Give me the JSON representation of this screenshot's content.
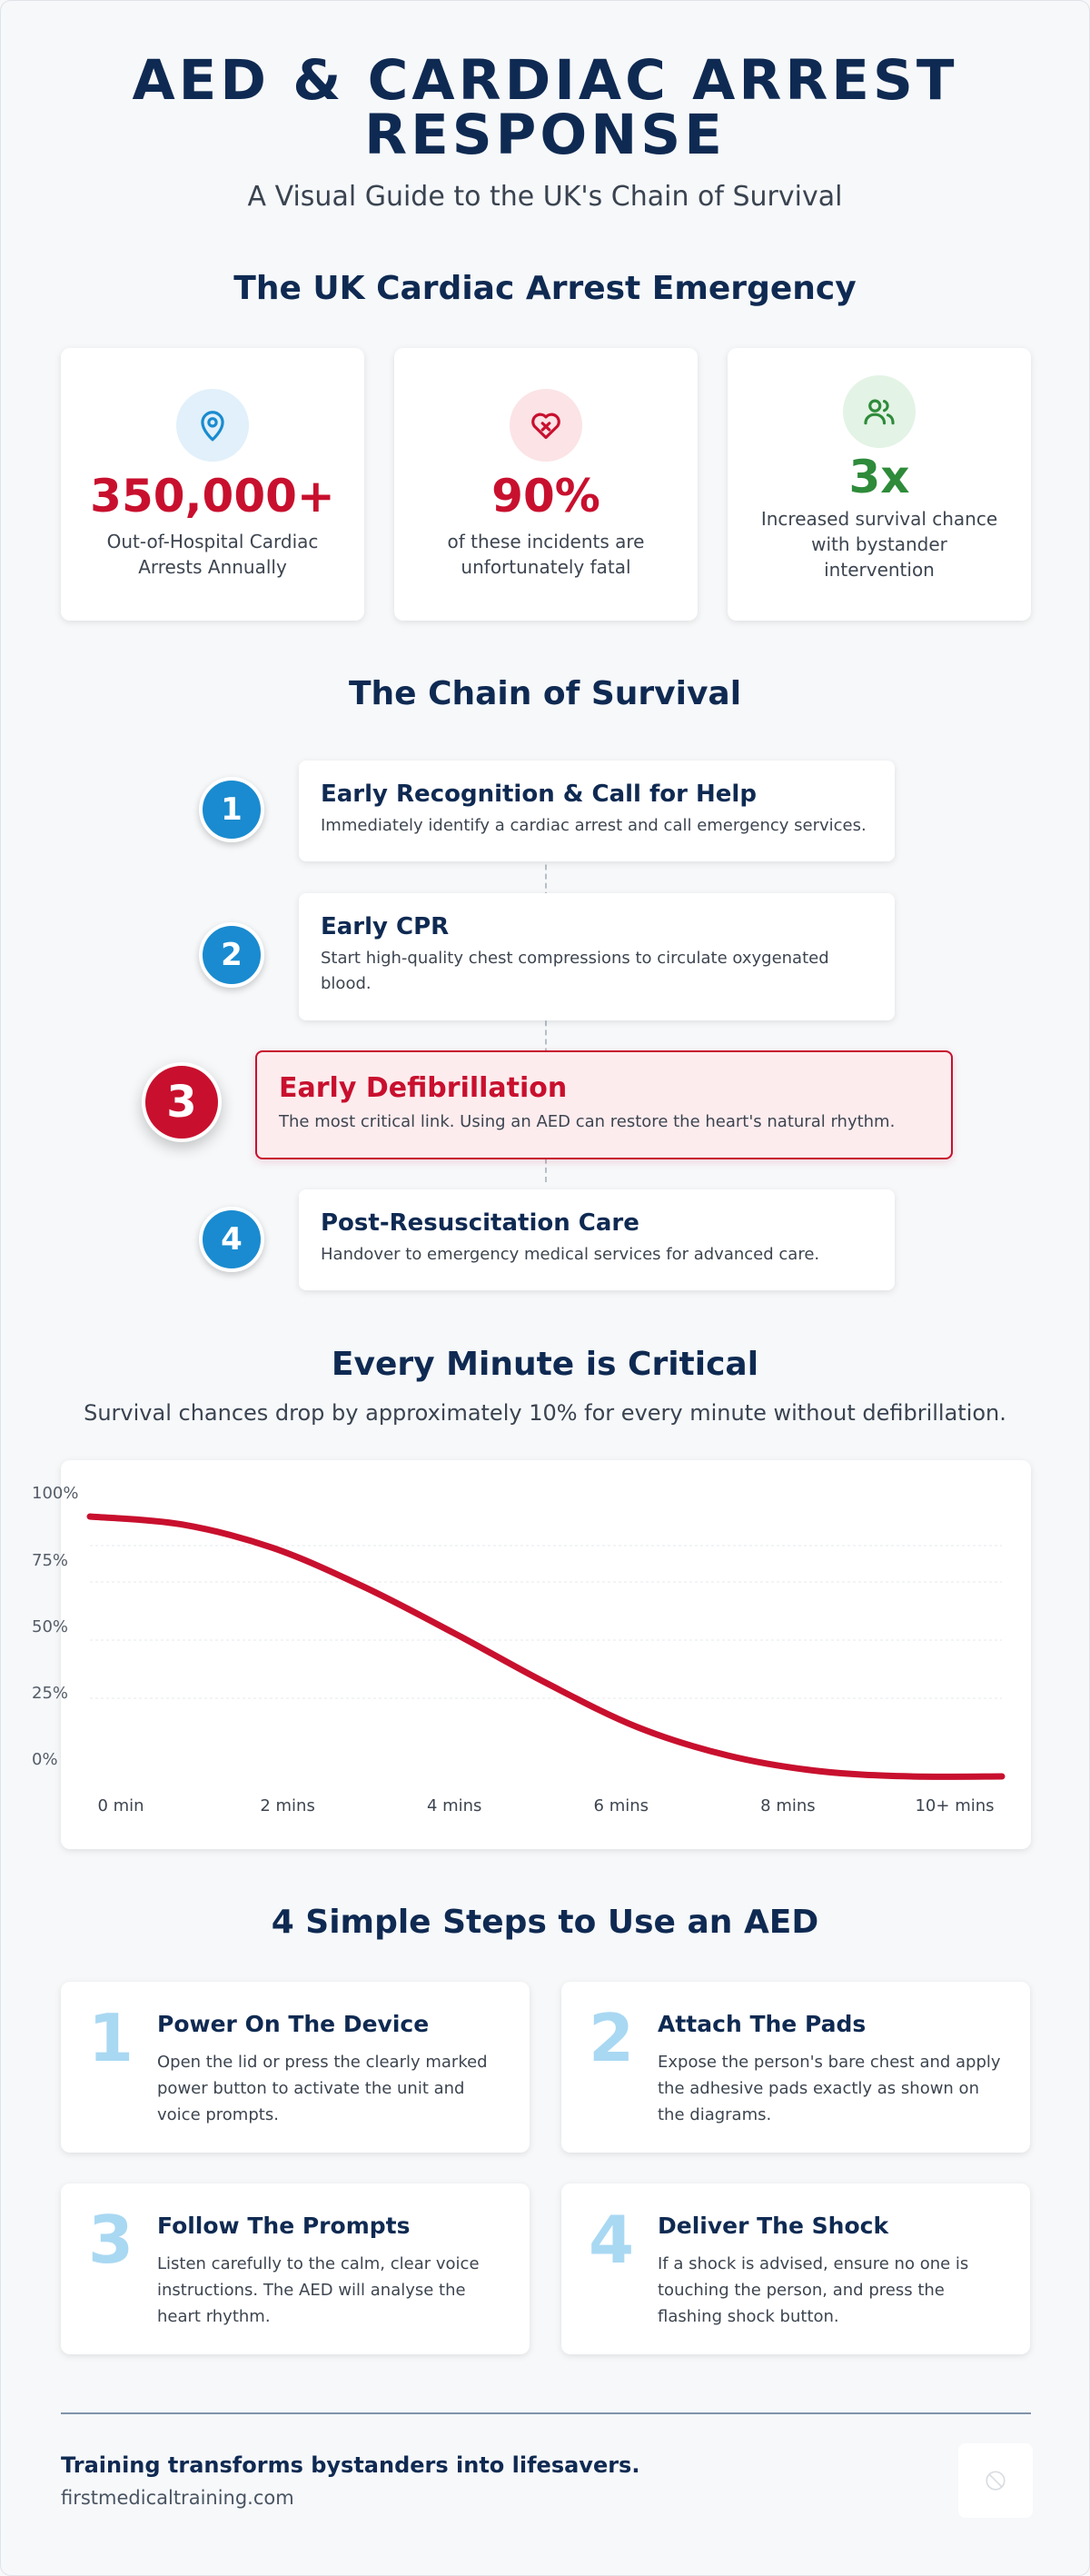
{
  "header": {
    "title_line1": "AED & CARDIAC ARREST",
    "title_line2": "RESPONSE",
    "subtitle": "A Visual Guide to the UK's Chain of Survival"
  },
  "emergency": {
    "heading": "The UK Cardiac Arrest Emergency",
    "stats": [
      {
        "icon": "map-pin-icon",
        "value": "350,000+",
        "label": "Out-of-Hospital Cardiac Arrests Annually",
        "color": "#c8102e",
        "icon_bg": "#e1f0fa",
        "icon_color": "#1a8bd0"
      },
      {
        "icon": "broken-heart-icon",
        "value": "90%",
        "label": "of these incidents are unfortunately fatal",
        "color": "#c8102e",
        "icon_bg": "#fbe3e6",
        "icon_color": "#c8102e"
      },
      {
        "icon": "users-icon",
        "value": "3x",
        "label": "Increased survival chance with bystander intervention",
        "color": "#2e8b3a",
        "icon_bg": "#e3f3e5",
        "icon_color": "#2e8b3a"
      }
    ]
  },
  "chain": {
    "heading": "The Chain of Survival",
    "steps": [
      {
        "num": "1",
        "title": "Early Recognition & Call for Help",
        "desc": "Immediately identify a cardiac arrest and call emergency services."
      },
      {
        "num": "2",
        "title": "Early CPR",
        "desc": "Start high-quality chest compressions to circulate oxygenated blood."
      },
      {
        "num": "3",
        "title": "Early Defibrillation",
        "desc": "The most critical link. Using an AED can restore the heart's natural rhythm."
      },
      {
        "num": "4",
        "title": "Post-Resuscitation Care",
        "desc": "Handover to emergency medical services for advanced care."
      }
    ]
  },
  "critical": {
    "heading": "Every Minute is Critical",
    "subtitle": "Survival chances drop by approximately 10% for every minute without defibrillation."
  },
  "chart_data": {
    "type": "line",
    "title": "",
    "xlabel": "",
    "ylabel": "",
    "y_ticks": [
      "100%",
      "75%",
      "50%",
      "25%",
      "0%"
    ],
    "x_tick_labels": [
      "0 min",
      "2 mins",
      "4 mins",
      "6 mins",
      "8 mins",
      "10+ mins"
    ],
    "ylim": [
      0,
      100
    ],
    "grid": true,
    "series": [
      {
        "color": "#c8102e",
        "x": [
          0,
          1,
          2,
          3,
          4,
          5,
          6,
          7,
          8,
          9,
          10
        ],
        "y": [
          100,
          97,
          88,
          73,
          55,
          36,
          19,
          8,
          2,
          0,
          0
        ]
      }
    ]
  },
  "aed": {
    "heading": "4 Simple Steps to Use an AED",
    "steps": [
      {
        "num": "1",
        "title": "Power On The Device",
        "desc": "Open the lid or press the clearly marked power button to activate the unit and voice prompts."
      },
      {
        "num": "2",
        "title": "Attach The Pads",
        "desc": "Expose the person's bare chest and apply the adhesive pads exactly as shown on the diagrams."
      },
      {
        "num": "3",
        "title": "Follow The Prompts",
        "desc": "Listen carefully to the calm, clear voice instructions. The AED will analyse the heart rhythm."
      },
      {
        "num": "4",
        "title": "Deliver The Shock",
        "desc": "If a shock is advised, ensure no one is touching the person, and press the flashing shock button."
      }
    ]
  },
  "footer": {
    "tagline": "Training transforms bystanders into lifesavers.",
    "site": "firstmedicaltraining.com",
    "logo_icon": "no-image-icon"
  }
}
